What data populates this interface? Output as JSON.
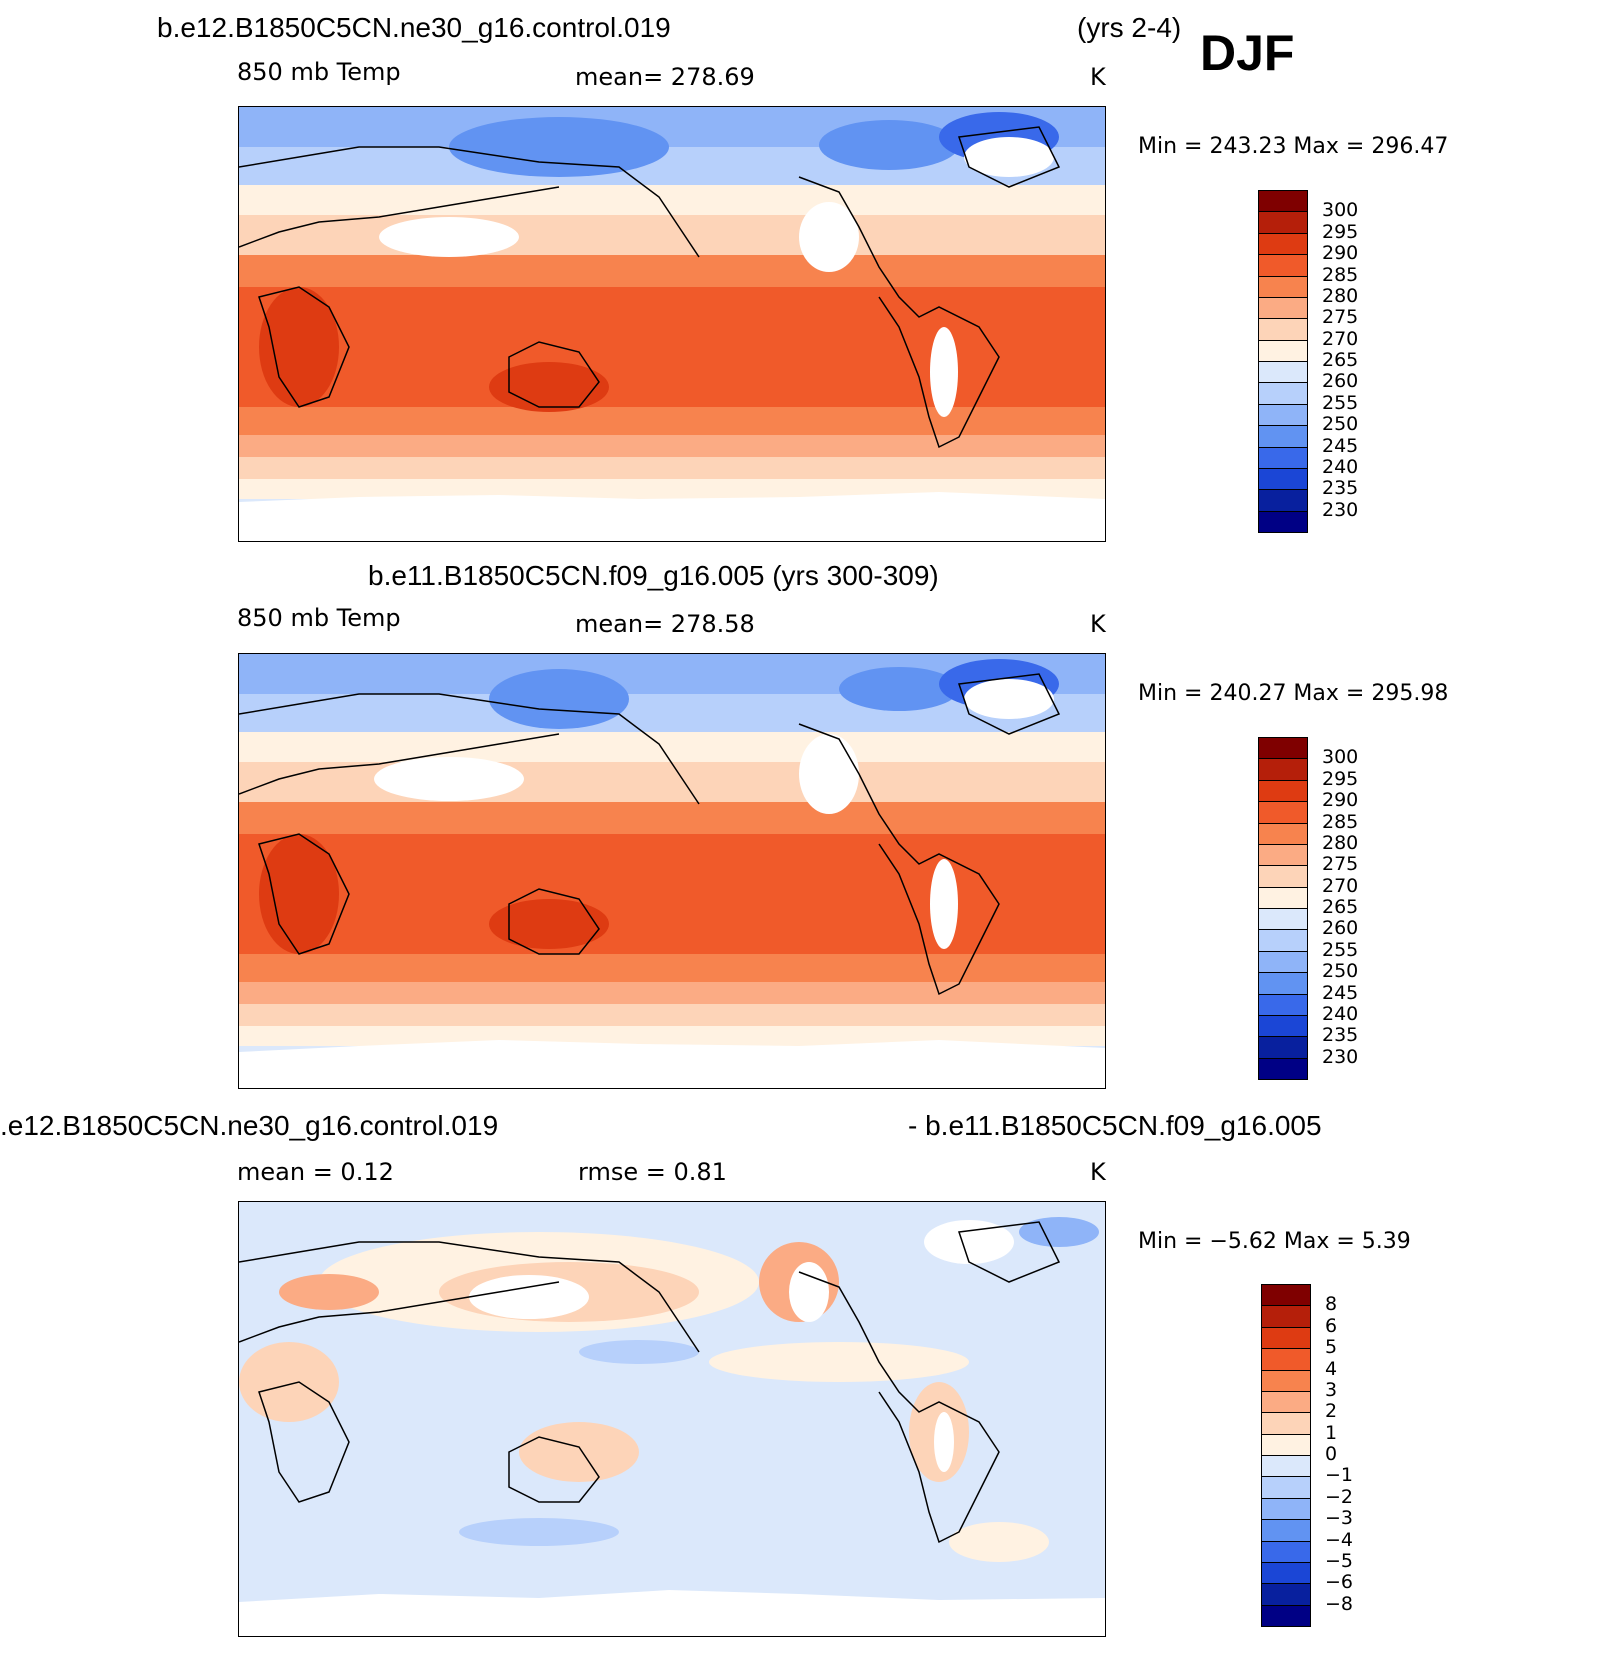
{
  "header": {
    "case1": "b.e12.B1850C5CN.ne30_g16.control.019",
    "case1_years": "(yrs 2-4)",
    "season": "DJF",
    "case2_full": "b.e11.B1850C5CN.f09_g16.005 (yrs 300-309)",
    "diff_left": ".e12.B1850C5CN.ne30_g16.control.019",
    "diff_right": "- b.e11.B1850C5CN.f09_g16.005"
  },
  "panels": [
    {
      "variable": "850 mb Temp",
      "stat_text": "mean=  278.69",
      "units": "K",
      "minmax_text": "Min  =  243.23  Max  =  296.47",
      "palette": "abs",
      "colorbar_labels": [
        "300",
        "295",
        "290",
        "285",
        "280",
        "275",
        "270",
        "265",
        "260",
        "255",
        "250",
        "245",
        "240",
        "235",
        "230"
      ]
    },
    {
      "variable": "850 mb Temp",
      "stat_text": "mean=  278.58",
      "units": "K",
      "minmax_text": "Min  =  240.27  Max  =  295.98",
      "palette": "abs",
      "colorbar_labels": [
        "300",
        "295",
        "290",
        "285",
        "280",
        "275",
        "270",
        "265",
        "260",
        "255",
        "250",
        "245",
        "240",
        "235",
        "230"
      ]
    },
    {
      "variable": "mean =     0.12",
      "stat_text": "rmse =     0.81",
      "units": "K",
      "minmax_text": "Min  =    −5.62  Max  =     5.39",
      "palette": "diff",
      "colorbar_labels": [
        "8",
        "6",
        "5",
        "4",
        "3",
        "2",
        "1",
        "0",
        "−1",
        "−2",
        "−3",
        "−4",
        "−5",
        "−6",
        "−8"
      ]
    }
  ],
  "colors": {
    "abs": [
      "#7f0000",
      "#b51f0a",
      "#de3b12",
      "#f05a2a",
      "#f7834e",
      "#fbab84",
      "#fdd4b8",
      "#fff2e2",
      "#dbe8fb",
      "#b7d0fb",
      "#8fb4f8",
      "#6193f2",
      "#3969ea",
      "#1b46d6",
      "#08209e",
      "#000085"
    ],
    "diff": [
      "#7f0000",
      "#b51f0a",
      "#de3b12",
      "#f05a2a",
      "#f7834e",
      "#fbab84",
      "#fdd4b8",
      "#fff2e2",
      "#dbe8fb",
      "#b7d0fb",
      "#8fb4f8",
      "#6193f2",
      "#3969ea",
      "#1b46d6",
      "#08209e",
      "#000085"
    ]
  }
}
